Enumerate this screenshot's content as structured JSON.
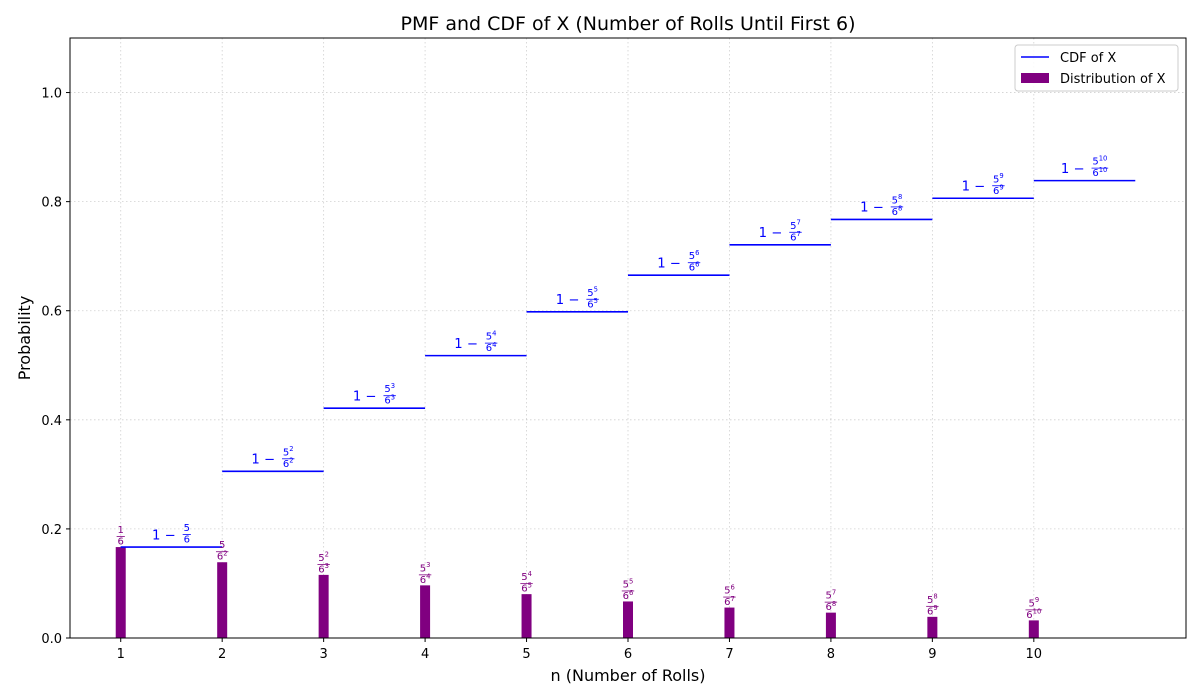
{
  "chart_data": {
    "type": "bar",
    "title": "PMF and CDF of X (Number of Rolls Until First 6)",
    "xlabel": "n (Number of Rolls)",
    "ylabel": "Probability",
    "xlim": [
      0.5,
      11.5
    ],
    "ylim": [
      0,
      1.1
    ],
    "xticks": [
      "1",
      "2",
      "3",
      "4",
      "5",
      "6",
      "7",
      "8",
      "9",
      "10"
    ],
    "yticks": [
      "0.0",
      "0.2",
      "0.4",
      "0.6",
      "0.8",
      "1.0"
    ],
    "grid": true,
    "legend_position": "top-right",
    "colors": {
      "pmf": "#800080",
      "cdf": "#0000ff"
    },
    "pmf": {
      "name": "Distribution of X",
      "x": [
        1,
        2,
        3,
        4,
        5,
        6,
        7,
        8,
        9,
        10
      ],
      "values": [
        0.1667,
        0.1389,
        0.1157,
        0.0965,
        0.0804,
        0.067,
        0.0558,
        0.0465,
        0.0388,
        0.0323
      ],
      "labels": [
        {
          "num": "1",
          "num_exp": "",
          "den": "6",
          "den_exp": ""
        },
        {
          "num": "5",
          "num_exp": "",
          "den": "6",
          "den_exp": "2"
        },
        {
          "num": "5",
          "num_exp": "2",
          "den": "6",
          "den_exp": "3"
        },
        {
          "num": "5",
          "num_exp": "3",
          "den": "6",
          "den_exp": "4"
        },
        {
          "num": "5",
          "num_exp": "4",
          "den": "6",
          "den_exp": "5"
        },
        {
          "num": "5",
          "num_exp": "5",
          "den": "6",
          "den_exp": "6"
        },
        {
          "num": "5",
          "num_exp": "6",
          "den": "6",
          "den_exp": "7"
        },
        {
          "num": "5",
          "num_exp": "7",
          "den": "6",
          "den_exp": "8"
        },
        {
          "num": "5",
          "num_exp": "8",
          "den": "6",
          "den_exp": "9"
        },
        {
          "num": "5",
          "num_exp": "9",
          "den": "6",
          "den_exp": "10"
        }
      ]
    },
    "cdf": {
      "name": "CDF of X",
      "x": [
        1,
        2,
        3,
        4,
        5,
        6,
        7,
        8,
        9,
        10
      ],
      "values": [
        0.1667,
        0.3056,
        0.4213,
        0.5177,
        0.5981,
        0.6651,
        0.7209,
        0.7674,
        0.8062,
        0.8385
      ],
      "labels": [
        {
          "prefix": "1 − ",
          "num": "5",
          "num_exp": "",
          "den": "6",
          "den_exp": ""
        },
        {
          "prefix": "1 − ",
          "num": "5",
          "num_exp": "2",
          "den": "6",
          "den_exp": "2"
        },
        {
          "prefix": "1 − ",
          "num": "5",
          "num_exp": "3",
          "den": "6",
          "den_exp": "3"
        },
        {
          "prefix": "1 − ",
          "num": "5",
          "num_exp": "4",
          "den": "6",
          "den_exp": "4"
        },
        {
          "prefix": "1 − ",
          "num": "5",
          "num_exp": "5",
          "den": "6",
          "den_exp": "5"
        },
        {
          "prefix": "1 − ",
          "num": "5",
          "num_exp": "6",
          "den": "6",
          "den_exp": "6"
        },
        {
          "prefix": "1 − ",
          "num": "5",
          "num_exp": "7",
          "den": "6",
          "den_exp": "7"
        },
        {
          "prefix": "1 − ",
          "num": "5",
          "num_exp": "8",
          "den": "6",
          "den_exp": "8"
        },
        {
          "prefix": "1 − ",
          "num": "5",
          "num_exp": "9",
          "den": "6",
          "den_exp": "9"
        },
        {
          "prefix": "1 − ",
          "num": "5",
          "num_exp": "10",
          "den": "6",
          "den_exp": "10"
        }
      ]
    }
  }
}
